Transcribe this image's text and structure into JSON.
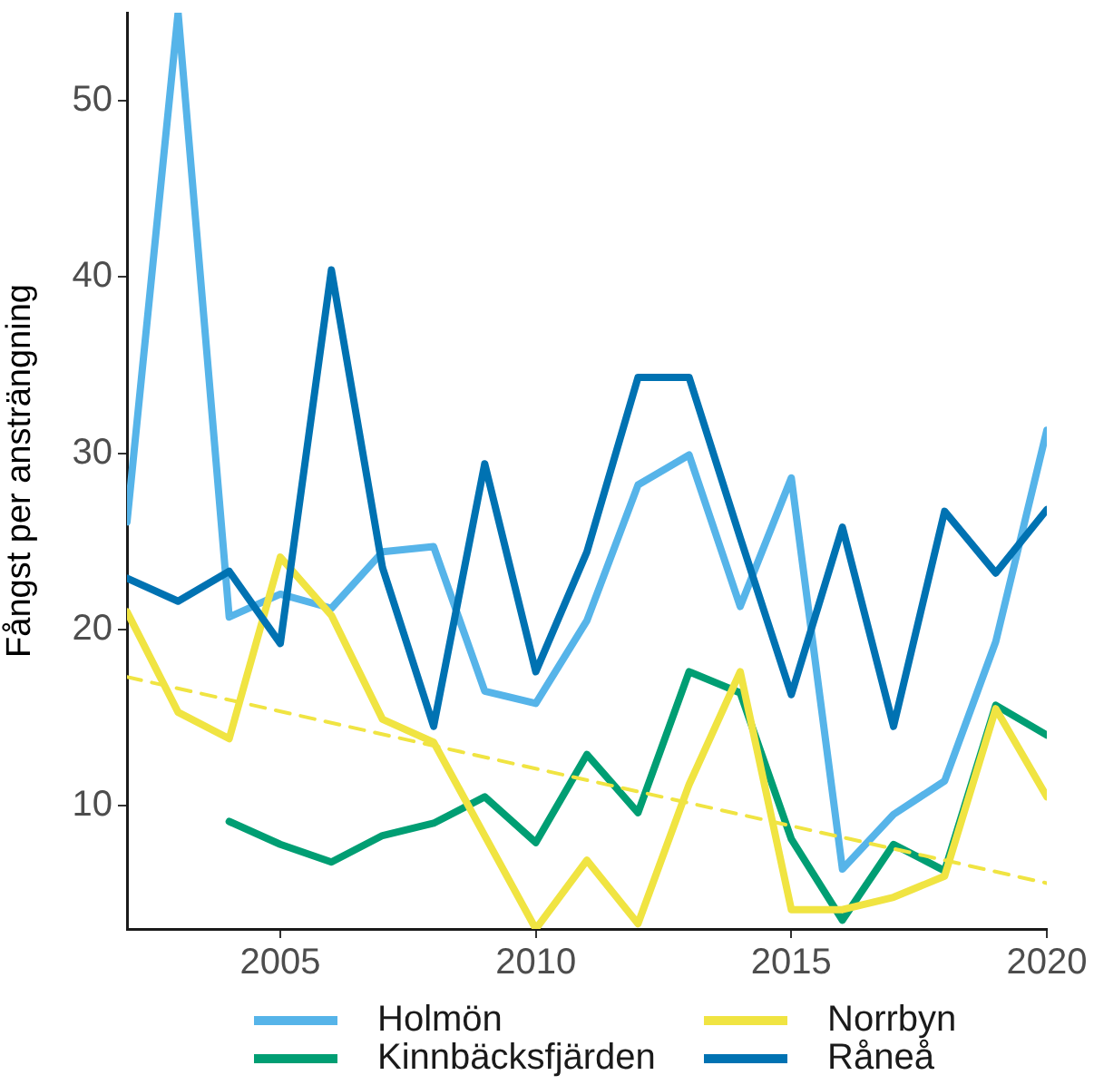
{
  "chart_data": {
    "type": "line",
    "ylabel": "Fångst per ansträngning",
    "x": [
      2002,
      2003,
      2004,
      2005,
      2006,
      2007,
      2008,
      2009,
      2010,
      2011,
      2012,
      2013,
      2014,
      2015,
      2016,
      2017,
      2018,
      2019,
      2020
    ],
    "series": [
      {
        "name": "Holmön",
        "color": "#56b4e9",
        "values": [
          26.1,
          55,
          20.7,
          22,
          21.2,
          24.4,
          24.7,
          16.5,
          15.8,
          20.5,
          28.2,
          29.9,
          21.3,
          28.6,
          6.4,
          9.5,
          11.4,
          19.3,
          31.3
        ]
      },
      {
        "name": "Kinnbäcksfjärden",
        "color": "#009e73",
        "values": [
          null,
          null,
          9.1,
          7.8,
          6.8,
          8.3,
          9.0,
          10.5,
          7.9,
          12.9,
          9.6,
          17.6,
          16.4,
          8.1,
          3.5,
          7.8,
          6.3,
          15.7,
          14.0
        ]
      },
      {
        "name": "Norrbyn",
        "color": "#f0e442",
        "values": [
          21.0,
          15.3,
          13.8,
          24.1,
          20.8,
          14.9,
          13.6,
          8.3,
          3.0,
          6.9,
          3.3,
          11.2,
          17.6,
          4.1,
          4.1,
          4.8,
          6.0,
          15.5,
          10.5
        ]
      },
      {
        "name": "Råneå",
        "color": "#0072b2",
        "values": [
          22.9,
          21.6,
          23.3,
          19.2,
          40.4,
          23.5,
          14.5,
          29.4,
          17.6,
          24.4,
          34.3,
          34.3,
          25.2,
          16.3,
          25.8,
          14.5,
          26.7,
          23.2,
          26.8
        ]
      },
      {
        "type": "line",
        "color": "#f0e442",
        "line_style": "dashed",
        "x": [
          2002,
          2020
        ],
        "values": [
          17.3,
          5.6
        ]
      }
    ],
    "xlim": [
      2002,
      2020
    ],
    "xticks": [
      2005,
      2010,
      2015,
      2020
    ],
    "ylim": [
      3,
      55
    ],
    "yticks": [
      10,
      20,
      30,
      40,
      50
    ],
    "marker": "none",
    "legend": "bottom"
  }
}
